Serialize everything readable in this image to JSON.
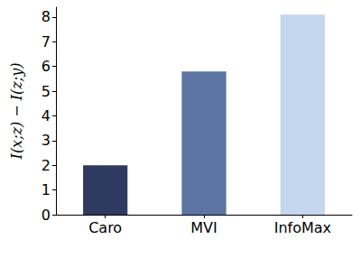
{
  "chart_data": {
    "type": "bar",
    "y_label": "I(x;z) − I(z;y)",
    "categories": [
      "Caro",
      "MVI",
      "InfoMax"
    ],
    "values": [
      2.0,
      5.8,
      8.1
    ],
    "colors": [
      "#2e3a5f",
      "#5b74a3",
      "#c4d7ee"
    ],
    "ylim": [
      0,
      8.4
    ],
    "yticks": [
      0,
      1,
      2,
      3,
      4,
      5,
      6,
      7,
      8
    ],
    "grid": false
  }
}
